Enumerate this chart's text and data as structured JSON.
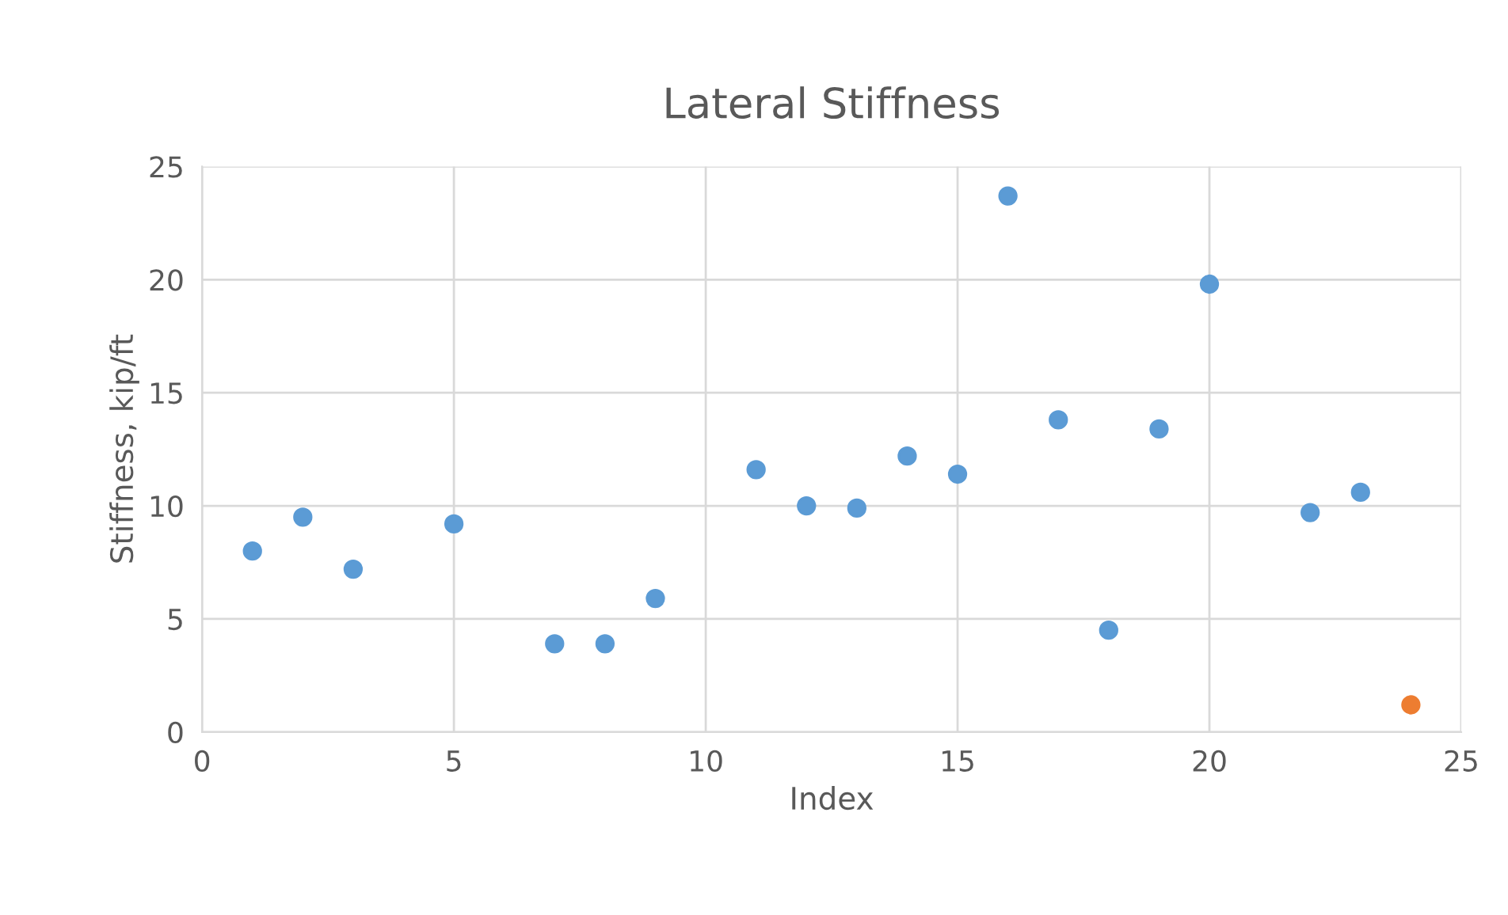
{
  "chart_data": {
    "type": "scatter",
    "title": "Lateral Stiffness",
    "xlabel": "Index",
    "ylabel": "Stiffness, kip/ft",
    "series": [
      {
        "color": "#5b9bd5",
        "x": [
          1,
          2,
          3,
          5,
          7,
          8,
          9,
          11,
          12,
          13,
          14,
          15,
          16,
          17,
          18,
          19,
          20,
          22,
          23
        ],
        "values": [
          8.0,
          9.5,
          7.2,
          9.2,
          3.9,
          3.9,
          5.9,
          11.6,
          10.0,
          9.9,
          12.2,
          11.4,
          23.7,
          13.8,
          4.5,
          13.4,
          19.8,
          9.7,
          10.6
        ]
      },
      {
        "color": "#ed7d31",
        "x": [
          24
        ],
        "values": [
          1.2
        ]
      }
    ],
    "xlim": [
      0,
      25
    ],
    "xticks": [
      0,
      5,
      10,
      15,
      20,
      25
    ],
    "ylim": [
      0,
      25
    ],
    "yticks": [
      0,
      5,
      10,
      15,
      20,
      25
    ],
    "grid": true,
    "marker": "circle",
    "legend": false
  }
}
